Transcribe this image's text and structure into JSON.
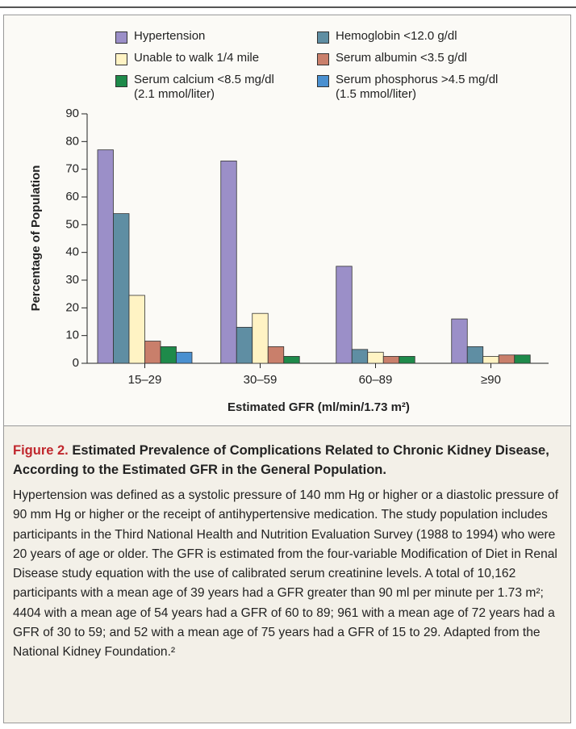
{
  "chart_data": {
    "type": "bar",
    "categories": [
      "15–29",
      "30–59",
      "60–89",
      "≥90"
    ],
    "series": [
      {
        "name": "Hypertension",
        "color": "#9b8fc8",
        "values": [
          77,
          73,
          35,
          16
        ]
      },
      {
        "name": "Hemoglobin <12.0 g/dl",
        "color": "#5f8ea3",
        "values": [
          54,
          13,
          5,
          6
        ]
      },
      {
        "name": "Unable to walk 1/4 mile",
        "color": "#fff3c4",
        "values": [
          24.5,
          18,
          4,
          2.5
        ]
      },
      {
        "name": "Serum albumin <3.5 g/dl",
        "color": "#c97f6b",
        "values": [
          8,
          6,
          2.5,
          3
        ]
      },
      {
        "name": "Serum calcium <8.5 mg/dl\n(2.1 mmol/liter)",
        "color": "#1e8a4a",
        "values": [
          6,
          2.5,
          2.5,
          3
        ]
      },
      {
        "name": "Serum phosphorus >4.5 mg/dl\n(1.5 mmol/liter)",
        "color": "#4a90d0",
        "values": [
          4,
          null,
          null,
          null
        ]
      }
    ],
    "x_label": "Estimated GFR (ml/min/1.73 m²)",
    "y_label": "Percentage of Population",
    "ylim": [
      0,
      90
    ],
    "yticks": [
      0,
      10,
      20,
      30,
      40,
      50,
      60,
      70,
      80,
      90
    ],
    "grid": false
  },
  "caption": {
    "label": "Figure 2.",
    "title": "Estimated Prevalence of Complications Related to Chronic Kidney Disease, According to the Estimated GFR in the General Population.",
    "text": "Hypertension was defined as a systolic pressure of 140 mm Hg or higher or a diastolic pressure of 90 mm Hg or higher or the receipt of antihypertensive medication. The study population includes participants in the Third National Health and Nutrition Evaluation Survey (1988 to 1994) who were 20 years of age or older. The GFR is estimated from the four-variable Modification of Diet in Renal Disease study equation with the use of calibrated serum creatinine levels. A total of 10,162 participants with a mean age of 39 years had a GFR greater than 90 ml per minute per 1.73 m²; 4404 with a mean age of 54 years had a GFR of 60 to 89; 961 with a mean age of 72 years had a GFR of 30 to 59; and 52 with a mean age of 75 years had a GFR of 15 to 29. Adapted from the National Kidney Foundation.²"
  }
}
